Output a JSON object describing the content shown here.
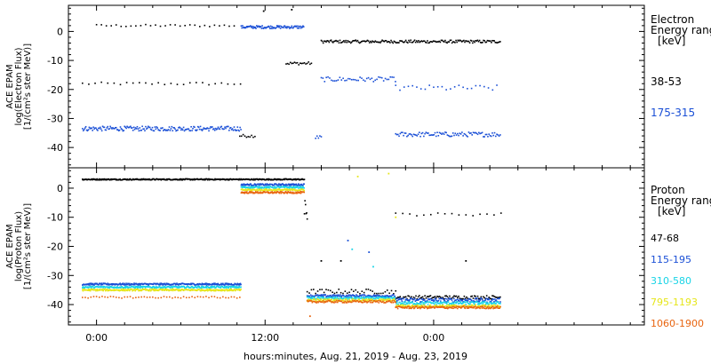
{
  "colors": {
    "black": "#000000",
    "blue": "#1a4fd6",
    "cyan": "#19d4e6",
    "yellow": "#e6e619",
    "orange": "#e8640f"
  },
  "chart_data": [
    {
      "type": "scatter",
      "panel": "electron",
      "ylabel_lines": [
        "ACE EPAM",
        "log(Electron Flux)",
        "[1/(cm²s ster MeV)]"
      ],
      "ylim": [
        -47,
        9
      ],
      "yticks": [
        0,
        -10,
        -20,
        -30,
        -40
      ],
      "legend_title_lines": [
        "Electron",
        "Energy ranges",
        "[keV]"
      ],
      "series": [
        {
          "name": "38-53",
          "color": "#000000",
          "segments": [
            {
              "x0": -1.0,
              "x1": 10.3,
              "y": -18,
              "jitter": 0.5,
              "step": 0.45
            },
            {
              "x0": 0.0,
              "x1": 10.0,
              "y": 2.0,
              "jitter": 0.4,
              "step": 0.35
            },
            {
              "x0": 10.2,
              "x1": 11.3,
              "y": -36.0,
              "jitter": 0.5,
              "step": 0.12
            },
            {
              "x0": 13.5,
              "x1": 15.3,
              "y": -11,
              "jitter": 0.5,
              "step": 0.1
            },
            {
              "x0": 16.0,
              "x1": 28.8,
              "y": -3.5,
              "jitter": 0.5,
              "step": 0.07
            }
          ],
          "points": [
            {
              "x": 11.9,
              "y": 7.0
            },
            {
              "x": 13.9,
              "y": 7.5
            }
          ]
        },
        {
          "name": "175-315",
          "color": "#1a4fd6",
          "segments": [
            {
              "x0": -1.0,
              "x1": 10.3,
              "y": -33.5,
              "jitter": 0.8,
              "step": 0.06
            },
            {
              "x0": 10.3,
              "x1": 14.8,
              "y": 1.5,
              "jitter": 0.5,
              "step": 0.05
            },
            {
              "x0": 15.6,
              "x1": 16.0,
              "y": -36.5,
              "jitter": 0.6,
              "step": 0.1
            },
            {
              "x0": 16.0,
              "x1": 21.3,
              "y": -16.5,
              "jitter": 0.8,
              "step": 0.12
            },
            {
              "x0": 21.3,
              "x1": 28.8,
              "y": -19.5,
              "jitter": 1.0,
              "step": 0.3
            },
            {
              "x0": 21.3,
              "x1": 28.8,
              "y": -35.5,
              "jitter": 0.8,
              "step": 0.08
            }
          ],
          "points": []
        }
      ]
    },
    {
      "type": "scatter",
      "panel": "proton",
      "ylabel_lines": [
        "ACE EPAM",
        "log(Proton Flux)",
        "[1/(cm²s ster MeV)]"
      ],
      "ylim": [
        -47,
        7
      ],
      "yticks": [
        0,
        -10,
        -20,
        -30,
        -40
      ],
      "legend_title_lines": [
        "Proton",
        "Energy ranges",
        "[keV]"
      ],
      "series": [
        {
          "name": "47-68",
          "color": "#000000",
          "segments": [
            {
              "x0": -1.0,
              "x1": 14.8,
              "y": 3.0,
              "jitter": 0.2,
              "step": 0.04
            },
            {
              "x0": 14.8,
              "x1": 15.0,
              "y": -8.0,
              "jitter": 4.0,
              "step": 0.04
            },
            {
              "x0": 15.0,
              "x1": 21.3,
              "y": -35.5,
              "jitter": 0.8,
              "step": 0.15
            },
            {
              "x0": 21.3,
              "x1": 28.8,
              "y": -9.0,
              "jitter": 0.5,
              "step": 0.5
            },
            {
              "x0": 21.3,
              "x1": 28.8,
              "y": -37.5,
              "jitter": 0.6,
              "step": 0.08
            }
          ],
          "points": [
            {
              "x": 16.0,
              "y": -25.0
            },
            {
              "x": 17.4,
              "y": -25.0
            },
            {
              "x": 26.3,
              "y": -25.0
            }
          ]
        },
        {
          "name": "115-195",
          "color": "#1a4fd6",
          "segments": [
            {
              "x0": -1.0,
              "x1": 10.3,
              "y": -33.0,
              "jitter": 0.3,
              "step": 0.04
            },
            {
              "x0": 10.3,
              "x1": 14.8,
              "y": 1.2,
              "jitter": 0.3,
              "step": 0.04
            },
            {
              "x0": 15.0,
              "x1": 21.3,
              "y": -37.0,
              "jitter": 0.4,
              "step": 0.05
            },
            {
              "x0": 21.3,
              "x1": 28.8,
              "y": -38.5,
              "jitter": 0.7,
              "step": 0.05
            }
          ],
          "points": [
            {
              "x": 17.9,
              "y": -18.0
            },
            {
              "x": 19.4,
              "y": -22.0
            }
          ]
        },
        {
          "name": "310-580",
          "color": "#19d4e6",
          "segments": [
            {
              "x0": -1.0,
              "x1": 10.3,
              "y": -34.0,
              "jitter": 0.3,
              "step": 0.04
            },
            {
              "x0": 10.3,
              "x1": 14.8,
              "y": 0.3,
              "jitter": 0.3,
              "step": 0.04
            },
            {
              "x0": 15.0,
              "x1": 21.3,
              "y": -37.8,
              "jitter": 0.4,
              "step": 0.05
            },
            {
              "x0": 21.3,
              "x1": 28.8,
              "y": -39.5,
              "jitter": 0.5,
              "step": 0.05
            }
          ],
          "points": [
            {
              "x": 18.2,
              "y": -21.0
            },
            {
              "x": 19.7,
              "y": -27.0
            }
          ]
        },
        {
          "name": "795-1193",
          "color": "#e6e619",
          "segments": [
            {
              "x0": -1.0,
              "x1": 10.3,
              "y": -35.0,
              "jitter": 0.3,
              "step": 0.04
            },
            {
              "x0": 10.3,
              "x1": 14.8,
              "y": -0.6,
              "jitter": 0.3,
              "step": 0.04
            },
            {
              "x0": 15.0,
              "x1": 21.3,
              "y": -38.5,
              "jitter": 0.4,
              "step": 0.05
            },
            {
              "x0": 21.3,
              "x1": 28.8,
              "y": -40.5,
              "jitter": 0.4,
              "step": 0.05
            }
          ],
          "points": [
            {
              "x": 20.8,
              "y": 5.0
            },
            {
              "x": 21.3,
              "y": -10.0
            },
            {
              "x": 18.6,
              "y": 4.0
            }
          ]
        },
        {
          "name": "1060-1900",
          "color": "#e8640f",
          "segments": [
            {
              "x0": -1.0,
              "x1": 10.3,
              "y": -37.5,
              "jitter": 0.3,
              "step": 0.2
            },
            {
              "x0": 10.3,
              "x1": 14.8,
              "y": -1.5,
              "jitter": 0.3,
              "step": 0.04
            },
            {
              "x0": 15.0,
              "x1": 21.3,
              "y": -39.0,
              "jitter": 0.4,
              "step": 0.06
            },
            {
              "x0": 21.3,
              "x1": 28.8,
              "y": -41.0,
              "jitter": 0.4,
              "step": 0.05
            }
          ],
          "points": [
            {
              "x": 15.2,
              "y": -44.0
            }
          ]
        }
      ]
    }
  ],
  "x_axis": {
    "xlim": [
      -2,
      39
    ],
    "tick_labels": [
      "0:00",
      "12:00",
      "0:00"
    ],
    "tick_hours": [
      0,
      12,
      24
    ],
    "minor_step_hours": 2,
    "xlabel": "hours:minutes, Aug. 21, 2019 - Aug. 23, 2019"
  }
}
